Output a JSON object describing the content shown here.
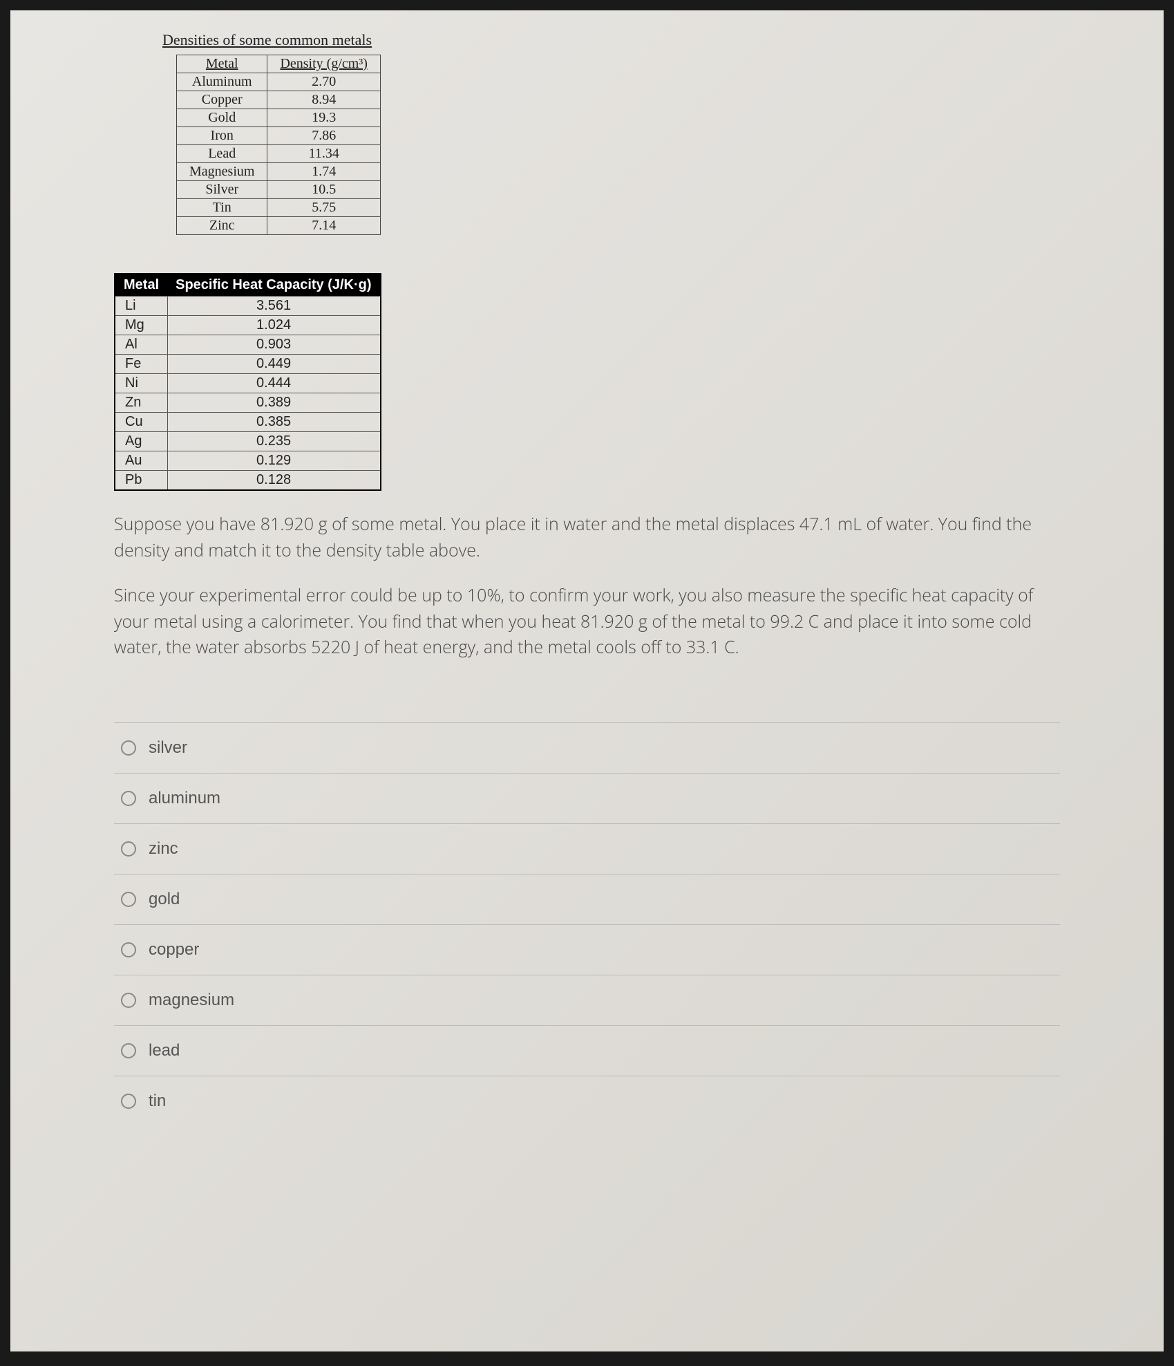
{
  "section_title": "Densities of some common metals",
  "density_table": {
    "headers": [
      "Metal",
      "Density (g/cm³)"
    ],
    "rows": [
      [
        "Aluminum",
        "2.70"
      ],
      [
        "Copper",
        "8.94"
      ],
      [
        "Gold",
        "19.3"
      ],
      [
        "Iron",
        "7.86"
      ],
      [
        "Lead",
        "11.34"
      ],
      [
        "Magnesium",
        "1.74"
      ],
      [
        "Silver",
        "10.5"
      ],
      [
        "Tin",
        "5.75"
      ],
      [
        "Zinc",
        "7.14"
      ]
    ]
  },
  "heat_table": {
    "headers": [
      "Metal",
      "Specific Heat Capacity (J/K·g)"
    ],
    "rows": [
      [
        "Li",
        "3.561"
      ],
      [
        "Mg",
        "1.024"
      ],
      [
        "Al",
        "0.903"
      ],
      [
        "Fe",
        "0.449"
      ],
      [
        "Ni",
        "0.444"
      ],
      [
        "Zn",
        "0.389"
      ],
      [
        "Cu",
        "0.385"
      ],
      [
        "Ag",
        "0.235"
      ],
      [
        "Au",
        "0.129"
      ],
      [
        "Pb",
        "0.128"
      ]
    ]
  },
  "paragraph1": "Suppose you have 81.920 g of some metal.  You place it in water and the metal displaces 47.1 mL of water.  You find the density and match it to the density table above.",
  "paragraph2": "Since your experimental error could be up to 10%, to confirm your work, you also measure the specific heat capacity of your metal using a calorimeter.  You find that when you heat 81.920 g of the metal to 99.2 C and place it into some cold water, the water absorbs 5220 J of heat energy, and the metal cools off to 33.1 C.",
  "options": [
    "silver",
    "aluminum",
    "zinc",
    "gold",
    "copper",
    "magnesium",
    "lead",
    "tin"
  ]
}
